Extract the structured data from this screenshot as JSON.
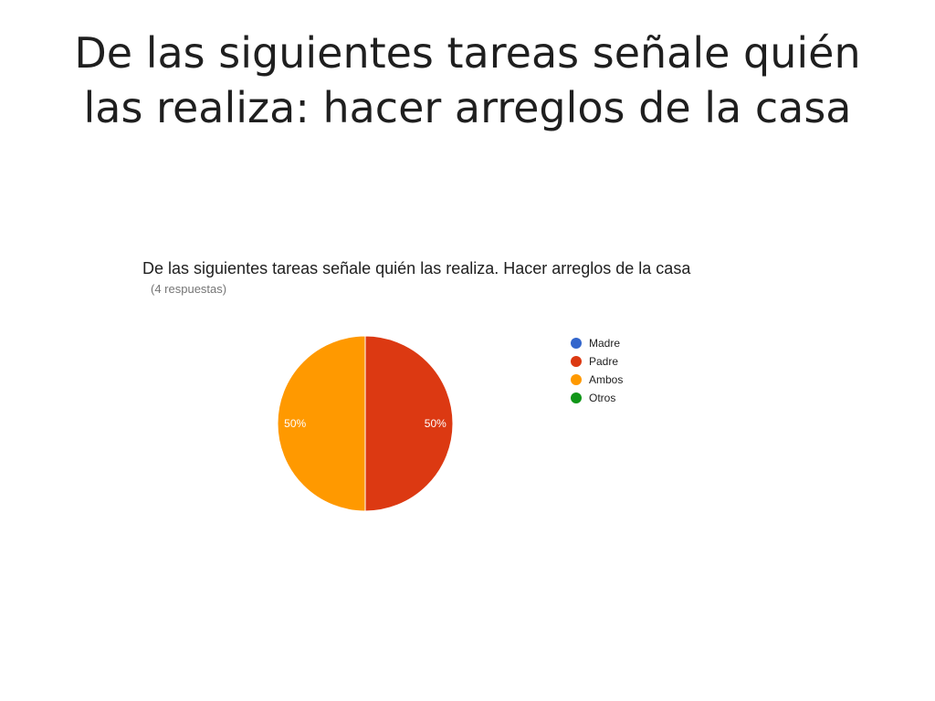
{
  "slide": {
    "title_lines": [
      "De las siguientes tareas señale quién",
      "las realiza: hacer arreglos de la casa"
    ]
  },
  "chart_data": {
    "type": "pie",
    "title": "De las siguientes tareas señale quién las realiza. Hacer arreglos de la casa",
    "subtitle": "(4 respuestas)",
    "legend_position": "right",
    "slices": [
      {
        "label": "Madre",
        "value": 0,
        "display": "",
        "color": "#3366cc"
      },
      {
        "label": "Padre",
        "value": 50,
        "display": "50%",
        "color": "#dc3912"
      },
      {
        "label": "Ambos",
        "value": 50,
        "display": "50%",
        "color": "#ff9900"
      },
      {
        "label": "Otros",
        "value": 0,
        "display": "",
        "color": "#109618"
      }
    ]
  }
}
